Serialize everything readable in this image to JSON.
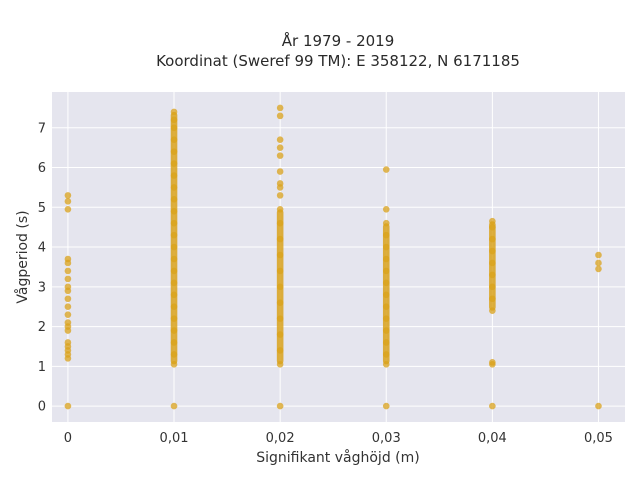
{
  "chart_data": {
    "type": "scatter",
    "title": [
      "År 1979 - 2019",
      "Koordinat (Sweref 99 TM): E 358122, N 6171185"
    ],
    "xlabel": "Signifikant våghöjd (m)",
    "ylabel": "Vågperiod (s)",
    "xlim": [
      -0.0015,
      0.0525
    ],
    "ylim": [
      -0.4,
      7.9
    ],
    "x_ticks": [
      0,
      0.01,
      0.02,
      0.03,
      0.04,
      0.05
    ],
    "x_tick_labels": [
      "0",
      "0,01",
      "0,02",
      "0,03",
      "0,04",
      "0,05"
    ],
    "y_ticks": [
      0,
      1,
      2,
      3,
      4,
      5,
      6,
      7
    ],
    "y_tick_labels": [
      "0",
      "1",
      "2",
      "3",
      "4",
      "5",
      "6",
      "7"
    ],
    "grid": true,
    "background_color": "#e5e5ee",
    "marker_color": "#d9a21b",
    "series": [
      {
        "points": [
          [
            0,
            0
          ],
          [
            0,
            1.2
          ],
          [
            0,
            1.3
          ],
          [
            0,
            1.4
          ],
          [
            0,
            1.5
          ],
          [
            0,
            1.6
          ],
          [
            0,
            1.9
          ],
          [
            0,
            2.0
          ],
          [
            0,
            2.1
          ],
          [
            0,
            2.3
          ],
          [
            0,
            2.5
          ],
          [
            0,
            2.7
          ],
          [
            0,
            2.9
          ],
          [
            0,
            3.0
          ],
          [
            0,
            3.2
          ],
          [
            0,
            3.4
          ],
          [
            0,
            3.6
          ],
          [
            0,
            3.7
          ],
          [
            0,
            4.95
          ],
          [
            0,
            5.15
          ],
          [
            0,
            5.3
          ],
          [
            0.01,
            0
          ],
          [
            0.01,
            1.05
          ],
          [
            0.01,
            1.3
          ],
          [
            0.01,
            1.6
          ],
          [
            0.01,
            1.9
          ],
          [
            0.01,
            2.2
          ],
          [
            0.01,
            2.5
          ],
          [
            0.01,
            2.8
          ],
          [
            0.01,
            3.1
          ],
          [
            0.01,
            3.4
          ],
          [
            0.01,
            3.7
          ],
          [
            0.01,
            4.0
          ],
          [
            0.01,
            4.3
          ],
          [
            0.01,
            4.6
          ],
          [
            0.01,
            4.9
          ],
          [
            0.01,
            5.2
          ],
          [
            0.01,
            5.5
          ],
          [
            0.01,
            5.8
          ],
          [
            0.01,
            6.1
          ],
          [
            0.01,
            6.4
          ],
          [
            0.01,
            6.7
          ],
          [
            0.01,
            7.0
          ],
          [
            0.01,
            7.2
          ],
          [
            0.01,
            7.4
          ],
          [
            0.02,
            0
          ],
          [
            0.02,
            1.05
          ],
          [
            0.02,
            1.4
          ],
          [
            0.02,
            1.8
          ],
          [
            0.02,
            2.2
          ],
          [
            0.02,
            2.6
          ],
          [
            0.02,
            3.0
          ],
          [
            0.02,
            3.4
          ],
          [
            0.02,
            3.8
          ],
          [
            0.02,
            4.2
          ],
          [
            0.02,
            4.6
          ],
          [
            0.02,
            4.95
          ],
          [
            0.02,
            5.3
          ],
          [
            0.02,
            5.5
          ],
          [
            0.02,
            5.6
          ],
          [
            0.02,
            5.9
          ],
          [
            0.02,
            6.3
          ],
          [
            0.02,
            6.5
          ],
          [
            0.02,
            6.7
          ],
          [
            0.02,
            7.3
          ],
          [
            0.02,
            7.5
          ],
          [
            0.03,
            0
          ],
          [
            0.03,
            1.05
          ],
          [
            0.03,
            1.3
          ],
          [
            0.03,
            1.6
          ],
          [
            0.03,
            1.9
          ],
          [
            0.03,
            2.2
          ],
          [
            0.03,
            2.5
          ],
          [
            0.03,
            2.8
          ],
          [
            0.03,
            3.1
          ],
          [
            0.03,
            3.4
          ],
          [
            0.03,
            3.7
          ],
          [
            0.03,
            4.0
          ],
          [
            0.03,
            4.3
          ],
          [
            0.03,
            4.6
          ],
          [
            0.03,
            4.95
          ],
          [
            0.03,
            5.95
          ],
          [
            0.04,
            0
          ],
          [
            0.04,
            1.05
          ],
          [
            0.04,
            1.1
          ],
          [
            0.04,
            2.4
          ],
          [
            0.04,
            2.7
          ],
          [
            0.04,
            3.0
          ],
          [
            0.04,
            3.3
          ],
          [
            0.04,
            3.6
          ],
          [
            0.04,
            3.9
          ],
          [
            0.04,
            4.2
          ],
          [
            0.04,
            4.5
          ],
          [
            0.04,
            4.65
          ],
          [
            0.05,
            0
          ],
          [
            0.05,
            3.45
          ],
          [
            0.05,
            3.6
          ],
          [
            0.05,
            3.8
          ]
        ]
      }
    ]
  }
}
